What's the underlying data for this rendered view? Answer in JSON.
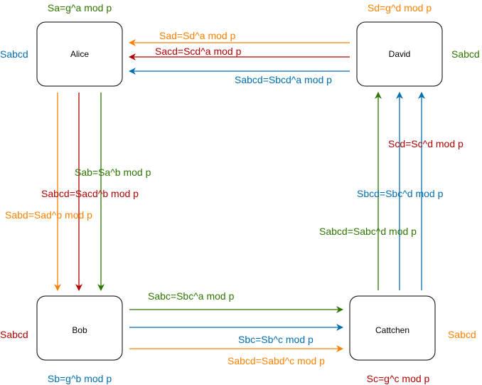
{
  "colors": {
    "orange": "#ff8000",
    "red": "#b20000",
    "green": "#2d7600",
    "blue": "#006eaf",
    "node_border": "#000000"
  },
  "nodes": {
    "alice": {
      "name": "Alice",
      "key": "Sa=g^a mod p",
      "final": "Sabcd"
    },
    "david": {
      "name": "David",
      "key": "Sd=g^d mod p",
      "final": "Sabcd"
    },
    "bob": {
      "name": "Bob",
      "key": "Sb=g^b mod p",
      "final": "Sabcd"
    },
    "catchen": {
      "name": "Cattchen",
      "key": "Sc=g^c mod p",
      "final": "Sabcd"
    }
  },
  "edges": {
    "david_to_alice": {
      "orange": "Sad=Sd^a mod p",
      "red": "Sacd=Scd^a mod p",
      "blue": "Sabcd=Sbcd^a mod p"
    },
    "alice_to_bob": {
      "green": "Sab=Sa^b mod p",
      "red": "Sabcd=Sacd^b mod p",
      "orange": "Sabd=Sad^b mod p"
    },
    "bob_to_catchen": {
      "green": "Sabc=Sbc^a mod p",
      "blue": "Sbc=Sb^c mod p",
      "orange": "Sabcd=Sabd^c mod p"
    },
    "catchen_to_david": {
      "red": "Scd=Sc^d mod p",
      "blue": "Sbcd=Sbc^d mod p",
      "green": "Sabcd=Sabc^d mod p"
    }
  }
}
